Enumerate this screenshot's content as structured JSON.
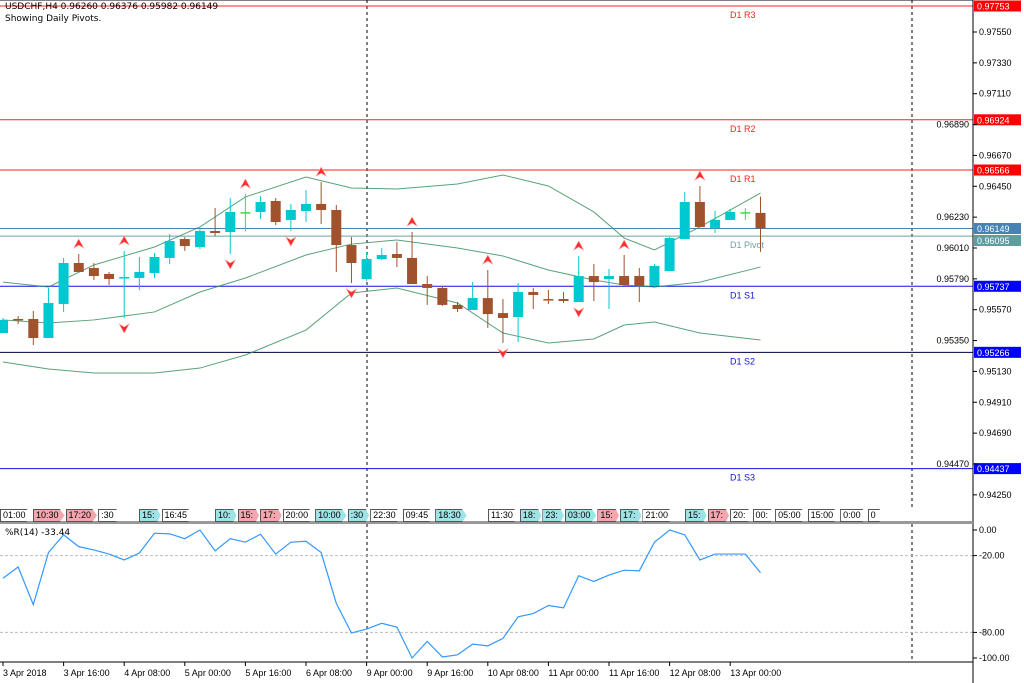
{
  "header": {
    "symbol_line": "USDCHF,H4  0.96260 0.96376 0.95982 0.96149",
    "subtitle": "Showing Daily Pivots."
  },
  "indicator": {
    "label": "%R(14) -33.44",
    "levels": [
      "0.00",
      "-20.00",
      "-80.00",
      "-100.00"
    ]
  },
  "colors": {
    "bull": "#00c8d0",
    "bear": "#a0522d",
    "doji": "#32e632",
    "bands": "#2e8b57",
    "wpr": "#3399ff",
    "resistance": "#ff2020",
    "support": "#1010ee",
    "pivot": "#6fa0a0",
    "current": "#4682b4"
  },
  "event_tags": [
    {
      "text": "01:00",
      "style": "w"
    },
    {
      "text": "10:30",
      "style": "p"
    },
    {
      "text": "17:20",
      "style": "p"
    },
    {
      "text": ":30",
      "style": "w"
    },
    {
      "text": "15:",
      "style": "c"
    },
    {
      "text": "16:45",
      "style": "w"
    },
    {
      "text": "10:",
      "style": "c"
    },
    {
      "text": "15:",
      "style": "p"
    },
    {
      "text": "17:",
      "style": "p"
    },
    {
      "text": "20:00",
      "style": "w"
    },
    {
      "text": "10:00",
      "style": "c"
    },
    {
      "text": ":30",
      "style": "c"
    },
    {
      "text": "22:30",
      "style": "w"
    },
    {
      "text": "09:45",
      "style": "w"
    },
    {
      "text": "18:30",
      "style": "c"
    },
    {
      "text": "11:30",
      "style": "w"
    },
    {
      "text": "18:",
      "style": "c"
    },
    {
      "text": "23:",
      "style": "c"
    },
    {
      "text": "03:00",
      "style": "c"
    },
    {
      "text": "15:",
      "style": "p"
    },
    {
      "text": "17:",
      "style": "c"
    },
    {
      "text": "21:00",
      "style": "w"
    },
    {
      "text": "15:",
      "style": "c"
    },
    {
      "text": "17:",
      "style": "p"
    },
    {
      "text": "20:",
      "style": "w"
    },
    {
      "text": "00:",
      "style": "w"
    },
    {
      "text": "05:00",
      "style": "w"
    },
    {
      "text": "15:00",
      "style": "w"
    },
    {
      "text": "0:00",
      "style": "w"
    },
    {
      "text": "0",
      "style": "w"
    }
  ],
  "chart_data": {
    "type": "candlestick",
    "title": "USDCHF,H4",
    "ylim": [
      0.9415,
      0.978
    ],
    "y_ticks": [
      "0.97550",
      "0.97330",
      "0.97110",
      "0.96890",
      "0.96670",
      "0.96450",
      "0.96230",
      "0.96010",
      "0.95790",
      "0.95570",
      "0.95350",
      "0.95130",
      "0.94910",
      "0.94690",
      "0.94470",
      "0.94250"
    ],
    "x_labels": [
      {
        "i": 0,
        "text": "3 Apr 2018"
      },
      {
        "i": 4,
        "text": "3 Apr 16:00"
      },
      {
        "i": 8,
        "text": "4 Apr 08:00"
      },
      {
        "i": 12,
        "text": "5 Apr 00:00"
      },
      {
        "i": 16,
        "text": "5 Apr 16:00"
      },
      {
        "i": 20,
        "text": "6 Apr 08:00"
      },
      {
        "i": 24,
        "text": "9 Apr 00:00"
      },
      {
        "i": 28,
        "text": "9 Apr 16:00"
      },
      {
        "i": 32,
        "text": "10 Apr 08:00"
      },
      {
        "i": 36,
        "text": "11 Apr 00:00"
      },
      {
        "i": 40,
        "text": "11 Apr 16:00"
      },
      {
        "i": 44,
        "text": "12 Apr 08:00"
      },
      {
        "i": 48,
        "text": "13 Apr 00:00"
      }
    ],
    "ohlc": [
      [
        0.95404,
        0.95511,
        0.95404,
        0.95497
      ],
      [
        0.95504,
        0.95525,
        0.95468,
        0.95497
      ],
      [
        0.95504,
        0.95561,
        0.95318,
        0.95368
      ],
      [
        0.95368,
        0.95725,
        0.95368,
        0.95618
      ],
      [
        0.95611,
        0.95939,
        0.95554,
        0.95903
      ],
      [
        0.95903,
        0.95967,
        0.95839,
        0.95839
      ],
      [
        0.95867,
        0.95903,
        0.95782,
        0.9581
      ],
      [
        0.95825,
        0.95839,
        0.95746,
        0.95789
      ],
      [
        0.95796,
        0.95989,
        0.95511,
        0.95803
      ],
      [
        0.95796,
        0.95946,
        0.9571,
        0.95839
      ],
      [
        0.95832,
        0.95974,
        0.95796,
        0.95946
      ],
      [
        0.95939,
        0.9611,
        0.95896,
        0.9606
      ],
      [
        0.96074,
        0.96088,
        0.95989,
        0.96024
      ],
      [
        0.96017,
        0.96145,
        0.96003,
        0.96131
      ],
      [
        0.96131,
        0.96295,
        0.96095,
        0.96117
      ],
      [
        0.96124,
        0.96366,
        0.95967,
        0.96267
      ],
      [
        0.96259,
        0.96395,
        0.96131,
        0.9626
      ],
      [
        0.96267,
        0.96381,
        0.96217,
        0.96338
      ],
      [
        0.96345,
        0.96366,
        0.96174,
        0.96195
      ],
      [
        0.9621,
        0.96324,
        0.96131,
        0.96281
      ],
      [
        0.96274,
        0.96423,
        0.96195,
        0.96324
      ],
      [
        0.96324,
        0.9648,
        0.96181,
        0.96281
      ],
      [
        0.96281,
        0.96317,
        0.95839,
        0.96031
      ],
      [
        0.96031,
        0.96088,
        0.9576,
        0.95903
      ],
      [
        0.95789,
        0.95974,
        0.95775,
        0.95931
      ],
      [
        0.95931,
        0.9601,
        0.95924,
        0.9596
      ],
      [
        0.95967,
        0.96053,
        0.95874,
        0.95939
      ],
      [
        0.95939,
        0.96124,
        0.95753,
        0.95753
      ],
      [
        0.95753,
        0.9581,
        0.95604,
        0.95725
      ],
      [
        0.95725,
        0.95739,
        0.95596,
        0.95604
      ],
      [
        0.95604,
        0.95625,
        0.95554,
        0.95575
      ],
      [
        0.95568,
        0.95767,
        0.95568,
        0.95653
      ],
      [
        0.95653,
        0.95853,
        0.9544,
        0.95539
      ],
      [
        0.95546,
        0.95646,
        0.95333,
        0.95511
      ],
      [
        0.95518,
        0.9576,
        0.9534,
        0.95696
      ],
      [
        0.95696,
        0.95725,
        0.95575,
        0.95675
      ],
      [
        0.95646,
        0.9571,
        0.95611,
        0.95639
      ],
      [
        0.95646,
        0.95696,
        0.95618,
        0.95632
      ],
      [
        0.95625,
        0.95953,
        0.95625,
        0.9581
      ],
      [
        0.9581,
        0.95896,
        0.95632,
        0.95767
      ],
      [
        0.95789,
        0.9586,
        0.95575,
        0.9581
      ],
      [
        0.9581,
        0.9596,
        0.95746,
        0.95746
      ],
      [
        0.9581,
        0.95867,
        0.95625,
        0.95739
      ],
      [
        0.95739,
        0.95896,
        0.95725,
        0.95882
      ],
      [
        0.95846,
        0.96088,
        0.95846,
        0.96081
      ],
      [
        0.96074,
        0.96409,
        0.96074,
        0.96338
      ],
      [
        0.96338,
        0.96452,
        0.9616,
        0.9616
      ],
      [
        0.96153,
        0.96274,
        0.96117,
        0.9621
      ],
      [
        0.9621,
        0.96288,
        0.9621,
        0.96267
      ],
      [
        0.9626,
        0.96295,
        0.9621,
        0.96259
      ],
      [
        0.9626,
        0.96376,
        0.95982,
        0.96149
      ]
    ],
    "bollinger": {
      "i": [
        0,
        3,
        6,
        10,
        13,
        16,
        20,
        23,
        26,
        30,
        33,
        36,
        39,
        41,
        43,
        46,
        50
      ],
      "upper": [
        0.95767,
        0.95732,
        0.95889,
        0.96017,
        0.9616,
        0.96374,
        0.96516,
        0.96438,
        0.96431,
        0.96466,
        0.9653,
        0.96452,
        0.96267,
        0.96081,
        0.95996,
        0.9616,
        0.96402
      ],
      "middle": [
        0.95497,
        0.95475,
        0.95497,
        0.95554,
        0.95696,
        0.95796,
        0.9596,
        0.96038,
        0.96067,
        0.9601,
        0.95953,
        0.95853,
        0.95782,
        0.95746,
        0.95732,
        0.95767,
        0.95874
      ],
      "lower": [
        0.95197,
        0.95147,
        0.95119,
        0.95119,
        0.95154,
        0.95247,
        0.95425,
        0.95689,
        0.95725,
        0.95618,
        0.95404,
        0.95333,
        0.95361,
        0.95461,
        0.95482,
        0.95404,
        0.95354
      ]
    },
    "fractals_up": [
      5,
      8,
      16,
      21,
      27,
      32,
      38,
      41,
      46
    ],
    "fractals_down": [
      8,
      15,
      19,
      23,
      33,
      38
    ],
    "pivots": [
      {
        "label": "D1 R3",
        "value": "0.97753",
        "kind": "resistance"
      },
      {
        "label": "D1 R2",
        "value": "0.96924",
        "kind": "resistance"
      },
      {
        "label": "D1 R1",
        "value": "0.96566",
        "kind": "resistance"
      },
      {
        "label": "D1 Pivot",
        "value": "0.96095",
        "kind": "pivot"
      },
      {
        "label": "D1 S1",
        "value": "0.95737",
        "kind": "support"
      },
      {
        "label": "D1 S2",
        "value": "0.95266",
        "kind": "support2"
      },
      {
        "label": "D1 S3",
        "value": "0.94437",
        "kind": "support"
      }
    ],
    "current_price": "0.96149",
    "wpr": [
      -37.7,
      -28.9,
      -58.3,
      -17.6,
      -3.8,
      -13,
      -15.6,
      -18.8,
      -23.4,
      -18,
      -2.5,
      -3,
      -6.8,
      0,
      -16.3,
      -6.8,
      -9.5,
      -3.3,
      -18.8,
      -9.5,
      -8.8,
      -17.6,
      -57.3,
      -80.4,
      -77.4,
      -72.9,
      -75.9,
      -100,
      -87,
      -99.2,
      -97.5,
      -89.2,
      -90.5,
      -84.7,
      -67.8,
      -65.3,
      -59,
      -60.8,
      -35.7,
      -40.2,
      -35.2,
      -31.4,
      -31.9,
      -9.5,
      0,
      -3.8,
      -23.4,
      -18.8,
      -18.8,
      -18.8,
      -33.44
    ],
    "wpr_range": [
      -100,
      0
    ]
  }
}
